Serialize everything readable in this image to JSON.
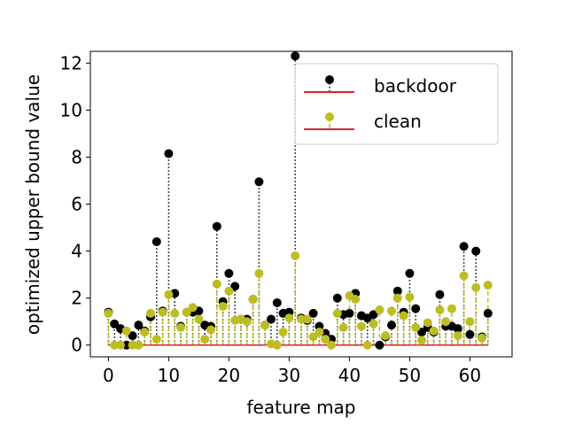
{
  "chart_data": {
    "type": "scatter",
    "subtype": "stem",
    "xlabel": "feature map",
    "ylabel": "optimized upper bound value",
    "xlim": [
      -3,
      67
    ],
    "ylim": [
      -0.5,
      12.5
    ],
    "x_ticks": [
      0,
      10,
      20,
      30,
      40,
      50,
      60
    ],
    "y_ticks": [
      0,
      2,
      4,
      6,
      8,
      10,
      12
    ],
    "grid": false,
    "legend_position": "upper right",
    "baseline": 0,
    "x": [
      0,
      1,
      2,
      3,
      4,
      5,
      6,
      7,
      8,
      9,
      10,
      11,
      12,
      13,
      14,
      15,
      16,
      17,
      18,
      19,
      20,
      21,
      22,
      23,
      24,
      25,
      26,
      27,
      28,
      29,
      30,
      31,
      32,
      33,
      34,
      35,
      36,
      37,
      38,
      39,
      40,
      41,
      42,
      43,
      44,
      45,
      46,
      47,
      48,
      49,
      50,
      51,
      52,
      53,
      54,
      55,
      56,
      57,
      58,
      59,
      60,
      61,
      62,
      63
    ],
    "series": [
      {
        "name": "backdoor",
        "marker_color": "#000000",
        "stem_color": "#000000",
        "stem_style": "dotted",
        "baseline_color": "#d62728",
        "values": [
          1.4,
          0.9,
          0.7,
          0.0,
          0.4,
          0.85,
          0.6,
          1.2,
          4.4,
          1.45,
          8.15,
          2.2,
          0.8,
          1.4,
          1.4,
          1.45,
          0.85,
          0.8,
          5.05,
          1.85,
          3.05,
          2.5,
          1.1,
          1.1,
          1.95,
          6.95,
          0.85,
          1.1,
          1.8,
          1.35,
          1.4,
          12.3,
          1.15,
          1.05,
          1.35,
          0.8,
          0.5,
          0.25,
          2.0,
          1.3,
          1.35,
          2.2,
          1.25,
          1.15,
          1.3,
          0.0,
          0.35,
          0.85,
          2.3,
          1.4,
          3.05,
          1.55,
          0.55,
          0.75,
          0.55,
          2.15,
          0.8,
          0.8,
          0.7,
          4.2,
          0.45,
          4.0,
          0.35,
          1.35
        ]
      },
      {
        "name": "clean",
        "marker_color": "#bcbd22",
        "stem_color": "#bcbd22",
        "stem_style": "dashed",
        "baseline_color": "#d62728",
        "values": [
          1.35,
          0.0,
          0.0,
          0.6,
          0.0,
          0.0,
          0.55,
          1.35,
          0.25,
          1.4,
          2.15,
          1.35,
          0.75,
          1.4,
          1.6,
          1.1,
          0.25,
          0.65,
          2.6,
          1.65,
          2.3,
          1.05,
          1.1,
          1.0,
          1.95,
          3.05,
          0.85,
          0.05,
          0.0,
          0.55,
          1.15,
          3.8,
          1.1,
          1.1,
          0.35,
          0.55,
          0.25,
          0.0,
          1.35,
          0.75,
          2.1,
          1.95,
          0.8,
          0.0,
          0.9,
          1.5,
          0.4,
          1.45,
          2.0,
          1.25,
          2.05,
          0.75,
          0.2,
          0.95,
          0.6,
          1.5,
          1.0,
          1.55,
          0.4,
          2.95,
          1.0,
          2.45,
          0.3,
          2.55
        ]
      }
    ]
  }
}
